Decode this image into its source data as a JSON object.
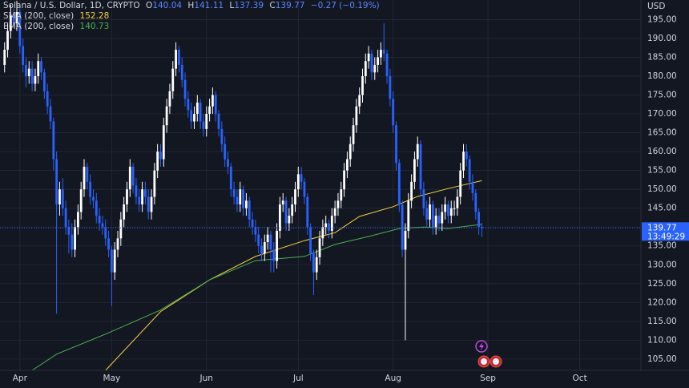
{
  "chart_data": {
    "type": "candlestick",
    "title": "Solana / U.S. Dollar, 1D, CRYPTO",
    "ohlc_legend": [
      {
        "key": "O",
        "value": "140.04"
      },
      {
        "key": "H",
        "value": "141.11"
      },
      {
        "key": "L",
        "value": "137.39"
      },
      {
        "key": "C",
        "value": "139.77"
      }
    ],
    "change_label": "−0.27 (−0.19%)",
    "y_unit": "USD",
    "last_price_label": "139.77",
    "countdown": "13:49:29",
    "up_color": "#ffffff",
    "down_color": "#2962ff",
    "x": [
      -5,
      -4,
      -3,
      -2,
      -1,
      0,
      1,
      2,
      3,
      4,
      5,
      6,
      7,
      8,
      9,
      10,
      11,
      12,
      13,
      14,
      15,
      16,
      17,
      18,
      19,
      20,
      21,
      22,
      23,
      24,
      25,
      26,
      27,
      28,
      29,
      30,
      31,
      32,
      33,
      34,
      35,
      36,
      37,
      38,
      39,
      40,
      41,
      42,
      43,
      44,
      45,
      46,
      47,
      48,
      49,
      50,
      51,
      52,
      53,
      54,
      55,
      56,
      57,
      58,
      59,
      60,
      61,
      62,
      63,
      64,
      65,
      66,
      67,
      68,
      69,
      70,
      71,
      72,
      73,
      74,
      75,
      76,
      77,
      78,
      79,
      80,
      81,
      82,
      83,
      84,
      85,
      86,
      87,
      88,
      89,
      90,
      91,
      92,
      93,
      94,
      95,
      96,
      97,
      98,
      99,
      100,
      101,
      102,
      103,
      104,
      105,
      106,
      107,
      108,
      109,
      110,
      111,
      112,
      113,
      114,
      115,
      116,
      117,
      118,
      119,
      120,
      121,
      122,
      123,
      124,
      125,
      126,
      127,
      128,
      129,
      130,
      131,
      132,
      133,
      134,
      135,
      136,
      137,
      138,
      139,
      140,
      141,
      142,
      143,
      144,
      145,
      146,
      147,
      148,
      149,
      150,
      151
    ],
    "open": [
      183,
      187,
      192,
      196,
      194,
      197,
      188,
      183,
      180,
      182,
      178,
      180,
      184,
      181,
      176,
      172,
      168,
      158,
      146,
      150,
      145,
      140,
      138,
      134,
      140,
      144,
      150,
      156,
      152,
      148,
      147,
      143,
      141,
      140,
      137,
      134,
      128,
      134,
      137,
      142,
      146,
      150,
      156,
      151,
      148,
      146,
      150,
      148,
      144,
      148,
      155,
      160,
      158,
      167,
      172,
      176,
      182,
      187,
      183,
      179,
      174,
      171,
      168,
      170,
      173,
      168,
      166,
      170,
      172,
      175,
      170,
      166,
      162,
      158,
      156,
      150,
      148,
      146,
      150,
      145,
      147,
      142,
      140,
      138,
      135,
      133,
      136,
      138,
      134,
      131,
      139,
      146,
      147,
      141,
      143,
      146,
      150,
      154,
      152,
      148,
      140,
      133,
      128,
      132,
      137,
      140,
      141,
      139,
      143,
      145,
      147,
      150,
      155,
      158,
      162,
      167,
      172,
      175,
      180,
      184,
      186,
      181,
      183,
      185,
      187,
      186,
      180,
      174,
      167,
      157,
      146,
      134,
      139,
      147,
      152,
      158,
      162,
      150,
      145,
      142,
      146,
      140,
      143,
      141,
      144,
      146,
      143,
      145,
      145,
      148,
      155,
      160,
      158,
      152,
      149,
      144,
      140.04
    ],
    "high": [
      189,
      194,
      199,
      198,
      200,
      198,
      190,
      185,
      184,
      184,
      182,
      186,
      185,
      182,
      178,
      174,
      169,
      160,
      152,
      153,
      147,
      142,
      141,
      142,
      146,
      152,
      158,
      157,
      154,
      150,
      149,
      145,
      143,
      142,
      139,
      135,
      136,
      139,
      144,
      148,
      152,
      158,
      157,
      153,
      150,
      152,
      152,
      150,
      150,
      157,
      162,
      162,
      169,
      174,
      178,
      184,
      189,
      188,
      185,
      181,
      176,
      173,
      172,
      175,
      174,
      170,
      172,
      174,
      177,
      176,
      171,
      168,
      164,
      160,
      157,
      152,
      150,
      152,
      151,
      149,
      148,
      144,
      142,
      140,
      137,
      138,
      140,
      139,
      136,
      141,
      148,
      149,
      148,
      145,
      148,
      152,
      156,
      156,
      153,
      149,
      141,
      134,
      134,
      139,
      142,
      143,
      142,
      145,
      147,
      149,
      152,
      157,
      160,
      164,
      169,
      174,
      177,
      182,
      186,
      188,
      187,
      185,
      187,
      189,
      194,
      187,
      182,
      176,
      168,
      158,
      147,
      141,
      149,
      154,
      160,
      164,
      163,
      152,
      147,
      148,
      147,
      145,
      145,
      146,
      148,
      147,
      147,
      147,
      150,
      157,
      162,
      162,
      159,
      154,
      150,
      145,
      141.11
    ],
    "low": [
      181,
      185,
      190,
      193,
      192,
      186,
      181,
      177,
      178,
      176,
      176,
      178,
      179,
      174,
      170,
      166,
      155,
      117,
      143,
      143,
      138,
      133,
      132,
      132,
      138,
      142,
      148,
      150,
      146,
      145,
      141,
      139,
      138,
      135,
      132,
      119,
      126,
      132,
      135,
      140,
      144,
      148,
      149,
      146,
      144,
      144,
      146,
      142,
      142,
      146,
      153,
      156,
      156,
      165,
      170,
      174,
      180,
      181,
      177,
      172,
      169,
      166,
      166,
      168,
      166,
      164,
      164,
      168,
      170,
      168,
      164,
      160,
      156,
      154,
      148,
      146,
      144,
      144,
      143,
      143,
      140,
      138,
      136,
      133,
      131,
      131,
      134,
      128,
      128,
      129,
      137,
      144,
      139,
      139,
      141,
      144,
      148,
      150,
      146,
      138,
      131,
      122,
      126,
      130,
      135,
      138,
      137,
      137,
      141,
      143,
      145,
      148,
      153,
      156,
      160,
      165,
      170,
      173,
      178,
      182,
      179,
      179,
      181,
      183,
      184,
      178,
      172,
      165,
      155,
      144,
      132,
      110,
      137,
      145,
      150,
      156,
      148,
      143,
      140,
      140,
      138,
      138,
      139,
      139,
      142,
      141,
      141,
      143,
      143,
      146,
      153,
      156,
      150,
      147,
      142,
      138,
      137.39
    ],
    "close": [
      187,
      192,
      196,
      194,
      197,
      188,
      183,
      180,
      182,
      178,
      180,
      184,
      181,
      176,
      172,
      168,
      158,
      146,
      150,
      145,
      140,
      138,
      134,
      140,
      144,
      150,
      156,
      152,
      148,
      147,
      143,
      141,
      140,
      137,
      134,
      128,
      134,
      137,
      142,
      146,
      150,
      156,
      151,
      148,
      146,
      150,
      148,
      144,
      148,
      155,
      160,
      158,
      167,
      172,
      176,
      182,
      187,
      183,
      179,
      174,
      171,
      168,
      170,
      173,
      168,
      166,
      170,
      172,
      175,
      170,
      166,
      162,
      158,
      156,
      150,
      148,
      146,
      150,
      145,
      147,
      142,
      140,
      138,
      135,
      133,
      136,
      138,
      134,
      131,
      139,
      146,
      147,
      141,
      143,
      146,
      150,
      154,
      152,
      148,
      140,
      133,
      128,
      132,
      137,
      140,
      141,
      139,
      143,
      145,
      147,
      150,
      155,
      158,
      162,
      167,
      172,
      175,
      180,
      184,
      186,
      181,
      183,
      185,
      187,
      186,
      180,
      174,
      167,
      157,
      146,
      134,
      139,
      147,
      152,
      158,
      162,
      150,
      145,
      142,
      146,
      140,
      143,
      141,
      144,
      146,
      143,
      145,
      145,
      148,
      155,
      160,
      158,
      152,
      149,
      144,
      140,
      139.77
    ],
    "series": [
      {
        "name": "SMA (200, close)",
        "color": "#f5d142",
        "value_label": "152.28",
        "x": [
          28,
          46,
          62,
          77,
          93,
          103,
          111,
          122,
          130,
          140,
          151
        ],
        "values": [
          102,
          117.6,
          126,
          132.2,
          136.4,
          138.5,
          142.8,
          145.4,
          148.1,
          150.2,
          152.28
        ]
      },
      {
        "name": "EMA (200, close)",
        "color": "#4caf50",
        "value_label": "140.73",
        "x": [
          4,
          12,
          28,
          46,
          62,
          77,
          93,
          103,
          114,
          124,
          132,
          140,
          151
        ],
        "values": [
          102,
          106.3,
          111.6,
          118,
          126,
          131.1,
          132.2,
          135.4,
          137.5,
          139.6,
          140,
          139.6,
          140.73
        ]
      }
    ],
    "xlim": [
      -6.5,
      203
    ],
    "xticks": [
      {
        "value": 0,
        "label": "Apr"
      },
      {
        "value": 30,
        "label": "May"
      },
      {
        "value": 61,
        "label": "Jun"
      },
      {
        "value": 91,
        "label": "Jul"
      },
      {
        "value": 122,
        "label": "Aug"
      },
      {
        "value": 153,
        "label": "Sep"
      },
      {
        "value": 183,
        "label": "Oct"
      }
    ],
    "ylim": [
      102,
      200.2
    ],
    "yticks": [
      {
        "value": 105,
        "label": "105.00"
      },
      {
        "value": 110,
        "label": "110.00"
      },
      {
        "value": 115,
        "label": "115.00"
      },
      {
        "value": 120,
        "label": "120.00"
      },
      {
        "value": 125,
        "label": "125.00"
      },
      {
        "value": 130,
        "label": "130.00"
      },
      {
        "value": 135,
        "label": "135.00"
      },
      {
        "value": 140,
        "label": "140.00"
      },
      {
        "value": 145,
        "label": "145.00"
      },
      {
        "value": 150,
        "label": "150.00"
      },
      {
        "value": 155,
        "label": "155.00"
      },
      {
        "value": 160,
        "label": "160.00"
      },
      {
        "value": 165,
        "label": "165.00"
      },
      {
        "value": 170,
        "label": "170.00"
      },
      {
        "value": 175,
        "label": "175.00"
      },
      {
        "value": 180,
        "label": "180.00"
      },
      {
        "value": 185,
        "label": "185.00"
      },
      {
        "value": 190,
        "label": "190.00"
      },
      {
        "value": 195,
        "label": "195.00"
      }
    ],
    "grid": true
  }
}
